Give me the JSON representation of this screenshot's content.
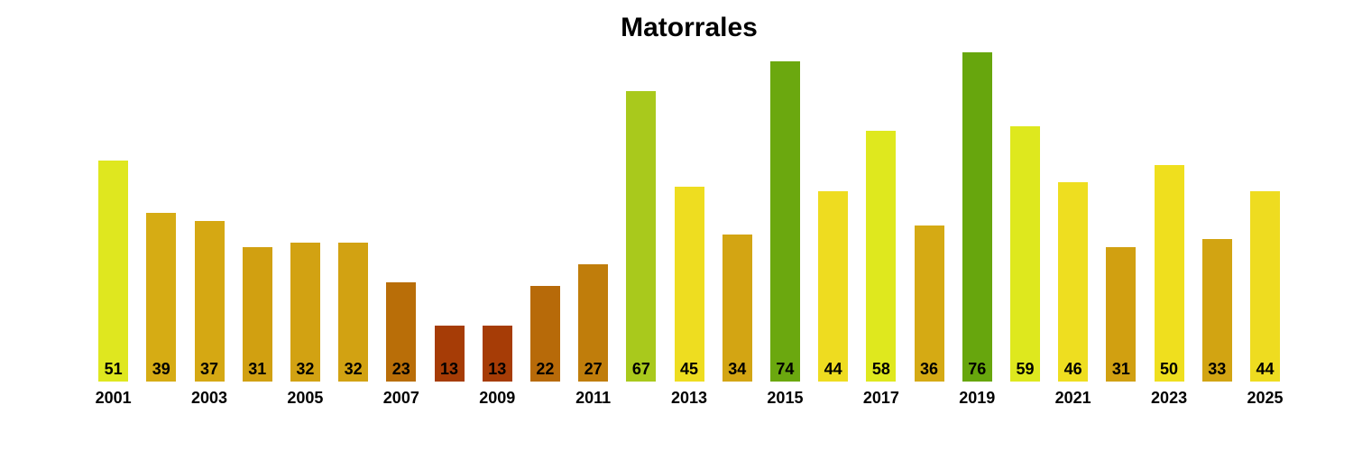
{
  "title": "Matorrales",
  "chart_data": {
    "type": "bar",
    "title": "Matorrales",
    "xlabel": "",
    "ylabel": "",
    "ylim": [
      0,
      76
    ],
    "grid": false,
    "legend": "none",
    "value_labels_position": "inside-bottom",
    "x": [
      2001,
      2002,
      2003,
      2004,
      2005,
      2006,
      2007,
      2008,
      2009,
      2010,
      2011,
      2012,
      2013,
      2014,
      2015,
      2016,
      2017,
      2018,
      2019,
      2020,
      2021,
      2022,
      2023,
      2024,
      2025
    ],
    "values": [
      51,
      39,
      37,
      31,
      32,
      32,
      23,
      13,
      13,
      22,
      27,
      67,
      45,
      34,
      74,
      44,
      58,
      36,
      76,
      59,
      46,
      31,
      50,
      33,
      44
    ],
    "colors": [
      "#dfe71f",
      "#d6ac14",
      "#d5a813",
      "#d1a011",
      "#d2a212",
      "#d2a212",
      "#b96e08",
      "#a63c06",
      "#a63c06",
      "#b76a09",
      "#c07d0b",
      "#a9c91c",
      "#eedd20",
      "#d3a513",
      "#6ba80f",
      "#eedc20",
      "#dfe81e",
      "#d5aa14",
      "#67a60d",
      "#dee81e",
      "#eede20",
      "#d1a011",
      "#efdf1e",
      "#d2a412",
      "#eedc20"
    ],
    "x_tick_labels": [
      "2001",
      "2003",
      "2005",
      "2007",
      "2009",
      "2011",
      "2013",
      "2015",
      "2017",
      "2019",
      "2021",
      "2023",
      "2025"
    ],
    "x_tick_every": "odd-years"
  }
}
